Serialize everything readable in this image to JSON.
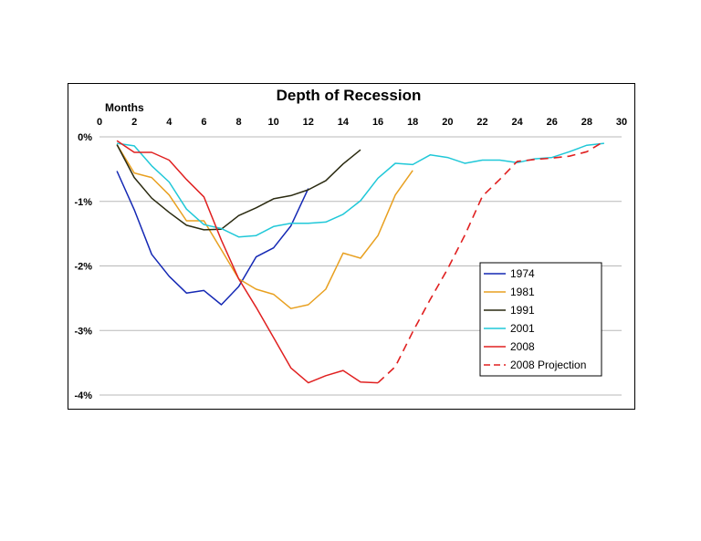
{
  "chart_data": {
    "type": "line",
    "title": "Depth of Recession",
    "xlabel": "Months",
    "ylabel": "",
    "xlim": [
      0,
      30
    ],
    "ylim": [
      -4,
      0
    ],
    "xticks": [
      0,
      2,
      4,
      6,
      8,
      10,
      12,
      14,
      16,
      18,
      20,
      22,
      24,
      26,
      28,
      30
    ],
    "yticks": [
      0,
      -1,
      -2,
      -3,
      -4
    ],
    "ytick_labels": [
      "0%",
      "-1%",
      "-2%",
      "-3%",
      "-4%"
    ],
    "x_axis_position": "top",
    "grid": "horizontal",
    "legend_position": "bottom-right",
    "series": [
      {
        "name": "1974",
        "color": "#1428b4",
        "dash": "solid",
        "x": [
          1,
          2,
          3,
          4,
          5,
          6,
          7,
          8,
          9,
          10,
          11,
          12
        ],
        "y": [
          -0.53,
          -1.13,
          -1.82,
          -2.16,
          -2.42,
          -2.38,
          -2.6,
          -2.32,
          -1.86,
          -1.72,
          -1.38,
          -0.8
        ]
      },
      {
        "name": "1981",
        "color": "#e8a020",
        "dash": "solid",
        "x": [
          1,
          2,
          3,
          4,
          5,
          6,
          7,
          8,
          9,
          10,
          11,
          12,
          13,
          14,
          15,
          16,
          17,
          18
        ],
        "y": [
          -0.12,
          -0.56,
          -0.63,
          -0.9,
          -1.3,
          -1.3,
          -1.75,
          -2.2,
          -2.36,
          -2.44,
          -2.66,
          -2.6,
          -2.36,
          -1.8,
          -1.88,
          -1.53,
          -0.9,
          -0.52
        ]
      },
      {
        "name": "1991",
        "color": "#2a2a10",
        "dash": "solid",
        "x": [
          1,
          2,
          3,
          4,
          5,
          6,
          7,
          8,
          9,
          10,
          11,
          12,
          13,
          14,
          15
        ],
        "y": [
          -0.12,
          -0.63,
          -0.95,
          -1.17,
          -1.37,
          -1.44,
          -1.43,
          -1.22,
          -1.1,
          -0.96,
          -0.91,
          -0.82,
          -0.68,
          -0.42,
          -0.2
        ]
      },
      {
        "name": "2001",
        "color": "#20c8d8",
        "dash": "solid",
        "x": [
          1,
          2,
          3,
          4,
          5,
          6,
          7,
          8,
          9,
          10,
          11,
          12,
          13,
          14,
          15,
          16,
          17,
          18,
          19,
          20,
          21,
          22,
          23,
          24,
          25,
          26,
          27,
          28,
          29
        ],
        "y": [
          -0.1,
          -0.14,
          -0.45,
          -0.7,
          -1.12,
          -1.36,
          -1.42,
          -1.55,
          -1.53,
          -1.39,
          -1.34,
          -1.34,
          -1.32,
          -1.2,
          -0.99,
          -0.64,
          -0.41,
          -0.43,
          -0.28,
          -0.32,
          -0.41,
          -0.36,
          -0.36,
          -0.4,
          -0.34,
          -0.32,
          -0.23,
          -0.13,
          -0.1
        ]
      },
      {
        "name": "2008",
        "color": "#e02020",
        "dash": "solid",
        "x": [
          1,
          2,
          3,
          4,
          5,
          6,
          7,
          8,
          9,
          10,
          11,
          12,
          13,
          14,
          15,
          16
        ],
        "y": [
          -0.06,
          -0.24,
          -0.24,
          -0.36,
          -0.66,
          -0.93,
          -1.6,
          -2.2,
          -2.64,
          -3.11,
          -3.58,
          -3.81,
          -3.7,
          -3.62,
          -3.8,
          -3.81
        ]
      },
      {
        "name": "2008 Projection",
        "color": "#e02020",
        "dash": "dashed",
        "x": [
          16,
          17,
          18,
          19,
          20,
          21,
          22,
          23,
          24,
          25,
          26,
          27,
          28,
          29
        ],
        "y": [
          -3.81,
          -3.56,
          -3.02,
          -2.52,
          -2.05,
          -1.52,
          -0.92,
          -0.66,
          -0.38,
          -0.35,
          -0.33,
          -0.3,
          -0.23,
          -0.07
        ]
      }
    ]
  }
}
